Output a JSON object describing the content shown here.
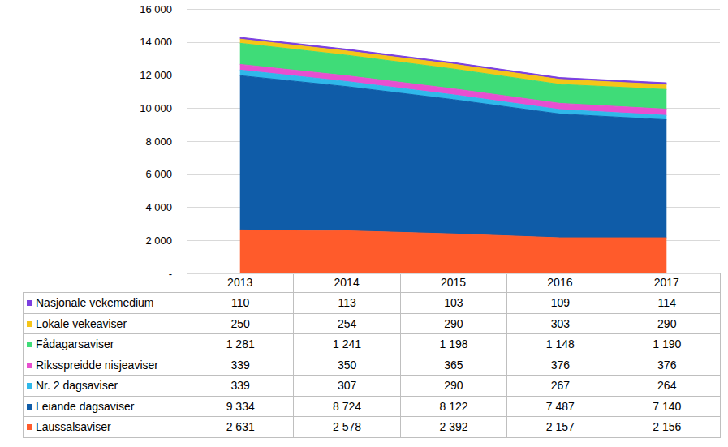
{
  "chart_data": {
    "type": "area",
    "stacked": true,
    "grid": true,
    "categories": [
      "2013",
      "2014",
      "2015",
      "2016",
      "2017"
    ],
    "ylim": [
      0,
      16000
    ],
    "yticks": [
      {
        "value": 0,
        "label": "-"
      },
      {
        "value": 2000,
        "label": "2 000"
      },
      {
        "value": 4000,
        "label": "4 000"
      },
      {
        "value": 6000,
        "label": "6 000"
      },
      {
        "value": 8000,
        "label": "8 000"
      },
      {
        "value": 10000,
        "label": "10 000"
      },
      {
        "value": 12000,
        "label": "12 000"
      },
      {
        "value": 14000,
        "label": "14 000"
      },
      {
        "value": 16000,
        "label": "16 000"
      }
    ],
    "series": [
      {
        "name": "Laussalsaviser",
        "color": "#ff5b2b",
        "values": [
          2631,
          2578,
          2392,
          2157,
          2156
        ],
        "value_labels": [
          "2 631",
          "2 578",
          "2 392",
          "2 157",
          "2 156"
        ]
      },
      {
        "name": "Leiande dagsaviser",
        "color": "#0f5ca8",
        "values": [
          9334,
          8724,
          8122,
          7487,
          7140
        ],
        "value_labels": [
          "9 334",
          "8 724",
          "8 122",
          "7 487",
          "7 140"
        ]
      },
      {
        "name": "Nr. 2 dagsaviser",
        "color": "#2fb8ea",
        "values": [
          339,
          307,
          290,
          267,
          264
        ],
        "value_labels": [
          "339",
          "307",
          "290",
          "267",
          "264"
        ]
      },
      {
        "name": "Riksspreidde nisjeaviser",
        "color": "#e84fd0",
        "values": [
          339,
          350,
          365,
          376,
          376
        ],
        "value_labels": [
          "339",
          "350",
          "365",
          "376",
          "376"
        ]
      },
      {
        "name": "Fådagarsaviser",
        "color": "#3fdc78",
        "values": [
          1281,
          1241,
          1198,
          1148,
          1190
        ],
        "value_labels": [
          "1 281",
          "1 241",
          "1 198",
          "1 148",
          "1 190"
        ]
      },
      {
        "name": "Lokale vekeaviser",
        "color": "#f5c518",
        "values": [
          250,
          254,
          290,
          303,
          290
        ],
        "value_labels": [
          "250",
          "254",
          "290",
          "303",
          "290"
        ]
      },
      {
        "name": "Nasjonale vekemedium",
        "color": "#7b3fe0",
        "values": [
          110,
          113,
          103,
          109,
          114
        ],
        "value_labels": [
          "110",
          "113",
          "103",
          "109",
          "114"
        ]
      }
    ]
  }
}
